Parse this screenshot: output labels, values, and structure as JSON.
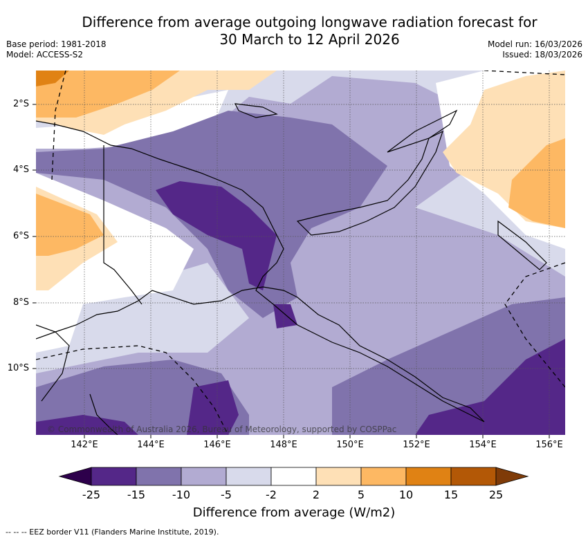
{
  "title_line1": "Difference from average outgoing longwave radiation forecast for",
  "title_line2": "30 March to 12 April 2026",
  "base_period": "Base period: 1981-2018",
  "model": "Model: ACCESS-S2",
  "model_run": "Model run: 16/03/2026",
  "issued": "Issued: 18/03/2026",
  "lat_labels": [
    "2°S",
    "4°S",
    "6°S",
    "8°S",
    "10°S"
  ],
  "lon_labels": [
    "142°E",
    "144°E",
    "146°E",
    "148°E",
    "150°E",
    "152°E",
    "154°E",
    "156°E"
  ],
  "colorbar": {
    "labels": [
      "-25",
      "-15",
      "-10",
      "-5",
      "-2",
      "2",
      "5",
      "10",
      "15",
      "25"
    ],
    "colors": [
      "#542788",
      "#8073ac",
      "#b2abd2",
      "#d8daeb",
      "#ffffff",
      "#fee0b6",
      "#fdb863",
      "#e08214",
      "#b35806"
    ],
    "under_color": "#2d004b",
    "over_color": "#7f3b08",
    "title": "Difference from average (W/m2)"
  },
  "copyright": "© Commonwealth of Australia 2026, Bureau of Meteorology, supported by COSPPac",
  "footer": "-- -- -- EEZ border V11 (Flanders Marine Institute, 2019)."
}
